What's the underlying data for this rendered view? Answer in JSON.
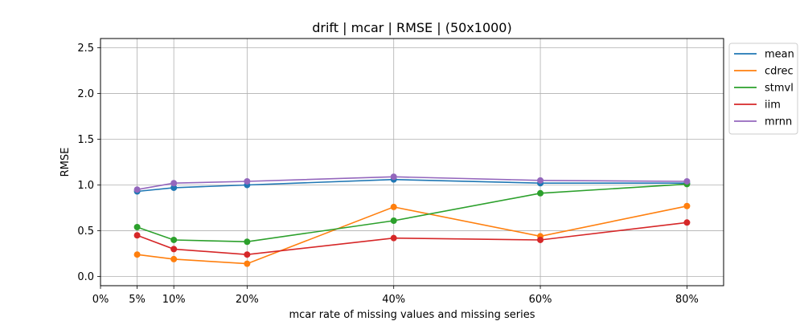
{
  "chart_data": {
    "type": "line",
    "title": "drift | mcar | RMSE | (50x1000)",
    "xlabel": "mcar rate of missing values and missing series",
    "ylabel": "RMSE",
    "xlim": [
      0,
      85
    ],
    "ylim": [
      -0.1,
      2.6
    ],
    "x_ticks": [
      0,
      5,
      10,
      20,
      40,
      60,
      80
    ],
    "x_tick_labels": [
      "0%",
      "5%",
      "10%",
      "20%",
      "40%",
      "60%",
      "80%"
    ],
    "y_ticks": [
      0.0,
      0.5,
      1.0,
      1.5,
      2.0,
      2.5
    ],
    "y_tick_labels": [
      "0.0",
      "0.5",
      "1.0",
      "1.5",
      "2.0",
      "2.5"
    ],
    "x": [
      5,
      10,
      20,
      40,
      60,
      80
    ],
    "grid": true,
    "legend_position": "outside-top-right",
    "markers": "circle",
    "series": [
      {
        "name": "mean",
        "color": "#1f77b4",
        "values": [
          0.93,
          0.97,
          1.0,
          1.06,
          1.02,
          1.02
        ]
      },
      {
        "name": "cdrec",
        "color": "#ff7f0e",
        "values": [
          0.24,
          0.19,
          0.14,
          0.76,
          0.44,
          0.77
        ]
      },
      {
        "name": "stmvl",
        "color": "#2ca02c",
        "values": [
          0.54,
          0.4,
          0.38,
          0.61,
          0.91,
          1.01
        ]
      },
      {
        "name": "iim",
        "color": "#d62728",
        "values": [
          0.45,
          0.3,
          0.24,
          0.42,
          0.4,
          0.59
        ]
      },
      {
        "name": "mrnn",
        "color": "#9467bd",
        "values": [
          0.95,
          1.02,
          1.04,
          1.09,
          1.05,
          1.04
        ]
      }
    ]
  }
}
